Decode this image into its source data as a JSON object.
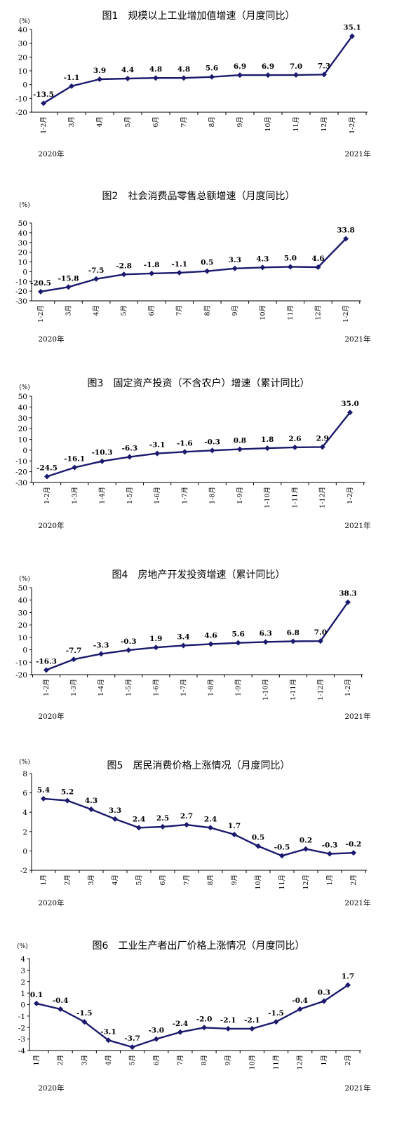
{
  "chart_data": [
    {
      "type": "line",
      "title": "图1　规模以上工业增加值增速（月度同比）",
      "ylabel": "(%)",
      "categories": [
        "1-2月",
        "3月",
        "4月",
        "5月",
        "6月",
        "7月",
        "8月",
        "9月",
        "10月",
        "11月",
        "12月",
        "1-2月"
      ],
      "values": [
        -13.5,
        -1.1,
        3.9,
        4.4,
        4.8,
        4.8,
        5.6,
        6.9,
        6.9,
        7.0,
        7.3,
        35.1
      ],
      "value_labels": [
        "-13.5",
        "-1.1",
        "3.9",
        "4.4",
        "4.8",
        "4.8",
        "5.6",
        "6.9",
        "6.9",
        "7.0",
        "7.3",
        "35.1"
      ],
      "ylim": [
        -20,
        40
      ],
      "yticks": [
        -20,
        -10,
        0,
        10,
        20,
        30,
        40
      ],
      "years": [
        "2020年",
        "2021年"
      ],
      "grid": false,
      "line_color": "#1a1a6e"
    },
    {
      "type": "line",
      "title": "图2　社会消费品零售总额增速（月度同比）",
      "ylabel": "(%)",
      "categories": [
        "1-2月",
        "3月",
        "4月",
        "5月",
        "6月",
        "7月",
        "8月",
        "9月",
        "10月",
        "11月",
        "12月",
        "1-2月"
      ],
      "values": [
        -20.5,
        -15.8,
        -7.5,
        -2.8,
        -1.8,
        -1.1,
        0.5,
        3.3,
        4.3,
        5.0,
        4.6,
        33.8
      ],
      "value_labels": [
        "-20.5",
        "-15.8",
        "-7.5",
        "-2.8",
        "-1.8",
        "-1.1",
        "0.5",
        "3.3",
        "4.3",
        "5.0",
        "4.6",
        "33.8"
      ],
      "ylim": [
        -30,
        50
      ],
      "yticks": [
        -30,
        -20,
        -10,
        0,
        10,
        20,
        30,
        40,
        50
      ],
      "years": [
        "2020年",
        "2021年"
      ],
      "grid": false,
      "line_color": "#1a1a6e"
    },
    {
      "type": "line",
      "title": "图3　固定资产投资（不含农户）增速（累计同比）",
      "ylabel": "(%)",
      "categories": [
        "1-2月",
        "1-3月",
        "1-4月",
        "1-5月",
        "1-6月",
        "1-7月",
        "1-8月",
        "1-9月",
        "1-10月",
        "1-11月",
        "1-12月",
        "1-2月"
      ],
      "values": [
        -24.5,
        -16.1,
        -10.3,
        -6.3,
        -3.1,
        -1.6,
        -0.3,
        0.8,
        1.8,
        2.6,
        2.9,
        35.0
      ],
      "value_labels": [
        "-24.5",
        "-16.1",
        "-10.3",
        "-6.3",
        "-3.1",
        "-1.6",
        "-0.3",
        "0.8",
        "1.8",
        "2.6",
        "2.9",
        "35.0"
      ],
      "ylim": [
        -30,
        50
      ],
      "yticks": [
        -30,
        -20,
        -10,
        0,
        10,
        20,
        30,
        40,
        50
      ],
      "years": [
        "2020年",
        "2021年"
      ],
      "grid": false,
      "line_color": "#1a1a6e"
    },
    {
      "type": "line",
      "title": "图4　房地产开发投资增速（累计同比）",
      "ylabel": "(%)",
      "categories": [
        "1-2月",
        "1-3月",
        "1-4月",
        "1-5月",
        "1-6月",
        "1-7月",
        "1-8月",
        "1-9月",
        "1-10月",
        "1-11月",
        "1-12月",
        "1-2月"
      ],
      "values": [
        -16.3,
        -7.7,
        -3.3,
        -0.3,
        1.9,
        3.4,
        4.6,
        5.6,
        6.3,
        6.8,
        7.0,
        38.3
      ],
      "value_labels": [
        "-16.3",
        "-7.7",
        "-3.3",
        "-0.3",
        "1.9",
        "3.4",
        "4.6",
        "5.6",
        "6.3",
        "6.8",
        "7.0",
        "38.3"
      ],
      "ylim": [
        -20,
        50
      ],
      "yticks": [
        -20,
        -10,
        0,
        10,
        20,
        30,
        40,
        50
      ],
      "years": [
        "2020年",
        "2021年"
      ],
      "grid": false,
      "line_color": "#1a1a6e"
    },
    {
      "type": "line",
      "title": "图5　居民消费价格上涨情况（月度同比）",
      "ylabel": "(%)",
      "categories": [
        "1月",
        "2月",
        "3月",
        "4月",
        "5月",
        "6月",
        "7月",
        "8月",
        "9月",
        "10月",
        "11月",
        "12月",
        "1月",
        "2月"
      ],
      "values": [
        5.4,
        5.2,
        4.3,
        3.3,
        2.4,
        2.5,
        2.7,
        2.4,
        1.7,
        0.5,
        -0.5,
        0.2,
        -0.3,
        -0.2
      ],
      "value_labels": [
        "5.4",
        "5.2",
        "4.3",
        "3.3",
        "2.4",
        "2.5",
        "2.7",
        "2.4",
        "1.7",
        "0.5",
        "-0.5",
        "0.2",
        "-0.3",
        "-0.2"
      ],
      "ylim": [
        -2,
        8
      ],
      "yticks": [
        -2,
        0,
        2,
        4,
        6,
        8
      ],
      "years": [
        "2020年",
        "2021年"
      ],
      "grid": false,
      "line_color": "#1a1a6e"
    },
    {
      "type": "line",
      "title": "图6　工业生产者出厂价格上涨情况（月度同比）",
      "ylabel": "(%)",
      "categories": [
        "1月",
        "2月",
        "3月",
        "4月",
        "5月",
        "6月",
        "7月",
        "8月",
        "9月",
        "10月",
        "11月",
        "12月",
        "1月",
        "2月"
      ],
      "values": [
        0.1,
        -0.4,
        -1.5,
        -3.1,
        -3.7,
        -3.0,
        -2.4,
        -2.0,
        -2.1,
        -2.1,
        -1.5,
        -0.4,
        0.3,
        1.7
      ],
      "value_labels": [
        "0.1",
        "-0.4",
        "-1.5",
        "-3.1",
        "-3.7",
        "-3.0",
        "-2.4",
        "-2.0",
        "-2.1",
        "-2.1",
        "-1.5",
        "-0.4",
        "0.3",
        "1.7"
      ],
      "ylim": [
        -4,
        4
      ],
      "yticks": [
        -4,
        -3,
        -2,
        -1,
        0,
        1,
        2,
        3,
        4
      ],
      "years": [
        "2020年",
        "2021年"
      ],
      "grid": false,
      "line_color": "#1a1a6e"
    }
  ]
}
